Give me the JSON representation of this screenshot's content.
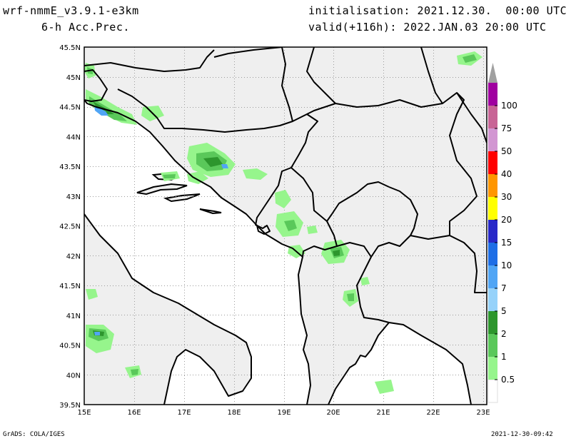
{
  "header": {
    "model": "wrf-nmmE_v3.9.1-e3km",
    "field": "6-h Acc.Prec.",
    "init": "initialisation: 2021.12.30.  00:00 UTC",
    "valid": "valid(+116h): 2022.JAN.03 20:00 UTC"
  },
  "map": {
    "lon_range": [
      15,
      23.3
    ],
    "lat_range": [
      39.5,
      45.5
    ],
    "lon_ticks": [
      "15E",
      "16E",
      "17E",
      "18E",
      "19E",
      "20E",
      "21E",
      "22E",
      "23E"
    ],
    "lat_ticks": [
      "45.5N",
      "45N",
      "44.5N",
      "44N",
      "43.5N",
      "43N",
      "42.5N",
      "42N",
      "41.5N",
      "41N",
      "40.5N",
      "40N",
      "39.5N"
    ],
    "land_color": "#efefef",
    "grid": true
  },
  "colorbar": {
    "levels": [
      "0.5",
      "1",
      "2",
      "5",
      "7",
      "10",
      "15",
      "20",
      "30",
      "40",
      "50",
      "75",
      "100"
    ],
    "colors": [
      "#ffffff",
      "#96f58c",
      "#5ac85a",
      "#2d962d",
      "#96d2fa",
      "#50a5f5",
      "#1e6ee6",
      "#2828c8",
      "#ffff00",
      "#ff9600",
      "#ff0000",
      "#d296d2",
      "#c86496",
      "#a000a0",
      "#a0a0a0"
    ]
  },
  "footer": {
    "left": "GrADS: COLA/IGES",
    "right": "2021-12-30-09:42"
  }
}
